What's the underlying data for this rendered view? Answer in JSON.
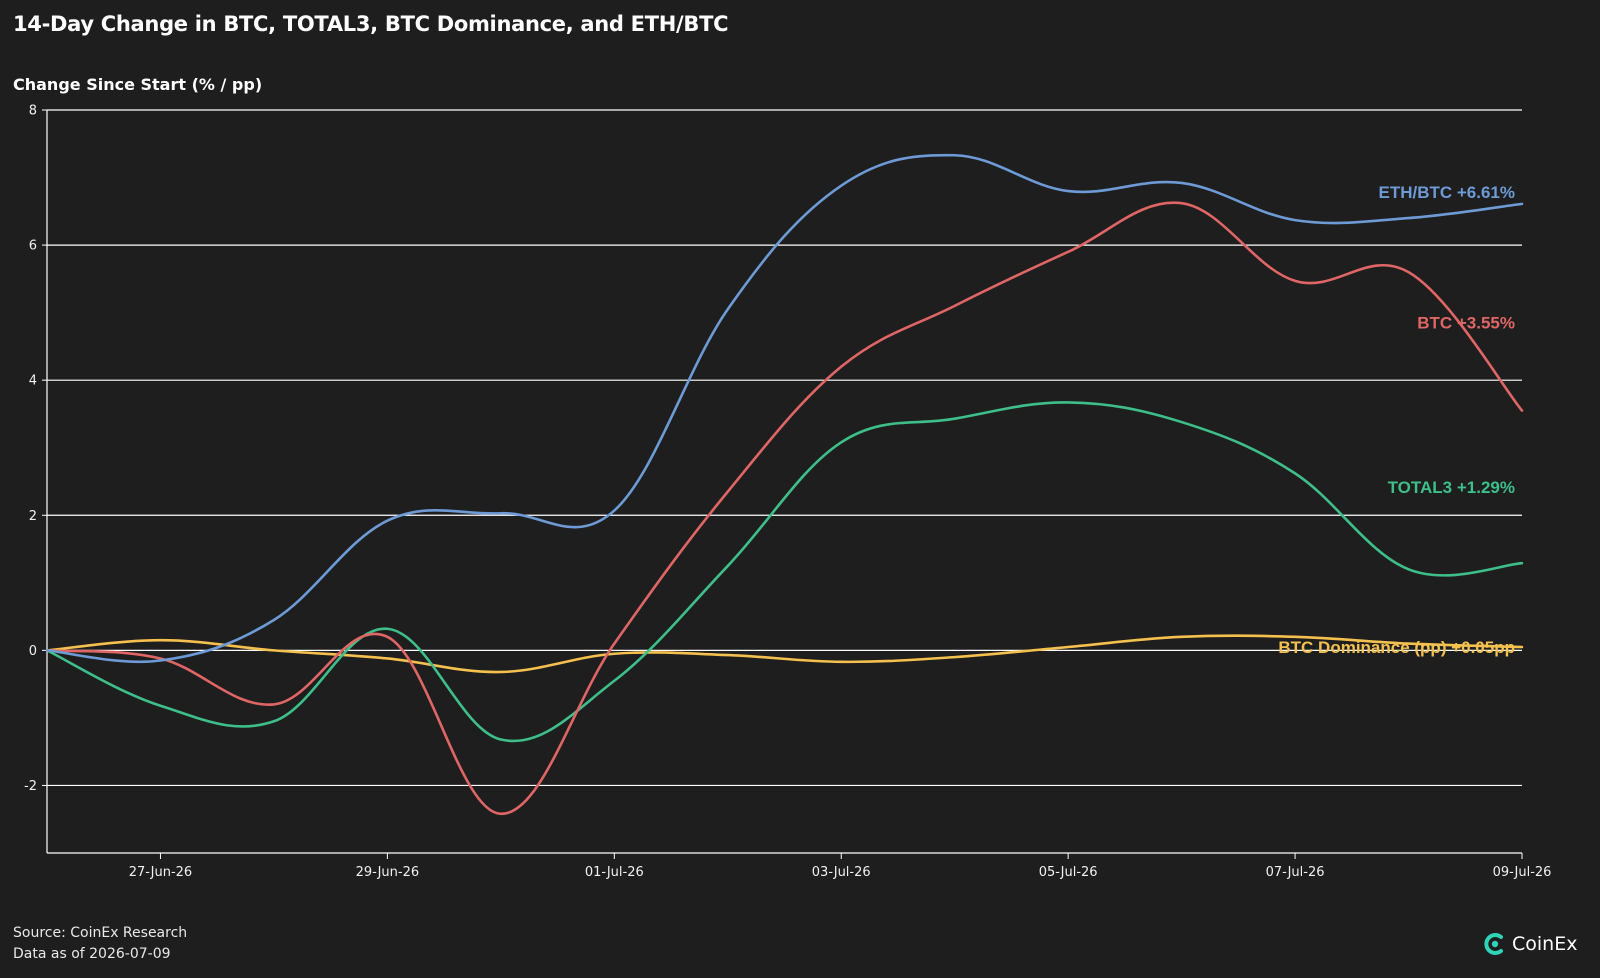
{
  "header": {
    "title": "14-Day Change in BTC, TOTAL3, BTC Dominance, and ETH/BTC",
    "ylabel": "Change Since Start (% / pp)"
  },
  "footer": {
    "source": "Source: CoinEx Research",
    "as_of": "Data as of 2026-07-09",
    "brand": "CoinEx"
  },
  "colors": {
    "background": "#1e1e1e",
    "grid": "#ffffff",
    "eth_btc": "#6d9bd6",
    "btc": "#e06666",
    "total3": "#3ebf8a",
    "btc_dominance": "#f4c04e",
    "brand_logo": "#2fd3b5"
  },
  "chart_data": {
    "type": "line",
    "title": "14-Day Change in BTC, TOTAL3, BTC Dominance, and ETH/BTC",
    "ylabel": "Change Since Start (% / pp)",
    "xlabel": "",
    "x": [
      "2026-06-26",
      "2026-06-27",
      "2026-06-28",
      "2026-06-29",
      "2026-06-30",
      "2026-07-01",
      "2026-07-02",
      "2026-07-03",
      "2026-07-04",
      "2026-07-05",
      "2026-07-06",
      "2026-07-07",
      "2026-07-08",
      "2026-07-09"
    ],
    "x_ticks": [
      "27-Jun-26",
      "29-Jun-26",
      "01-Jul-26",
      "03-Jul-26",
      "05-Jul-26",
      "07-Jul-26",
      "09-Jul-26"
    ],
    "x_tick_dates": [
      "2026-06-27",
      "2026-06-29",
      "2026-07-01",
      "2026-07-03",
      "2026-07-05",
      "2026-07-07",
      "2026-07-09"
    ],
    "ylim": [
      -3,
      8
    ],
    "y_ticks": [
      -2,
      0,
      2,
      4,
      6,
      8
    ],
    "grid": "horizontal",
    "series": [
      {
        "key": "eth_btc",
        "name": "ETH/BTC",
        "label": "ETH/BTC +6.61%",
        "values": [
          0,
          -0.15,
          0.45,
          1.92,
          2.03,
          2.07,
          5.05,
          6.88,
          7.33,
          6.8,
          6.92,
          6.37,
          6.4,
          6.61
        ]
      },
      {
        "key": "btc",
        "name": "BTC",
        "label": "BTC +3.55%",
        "values": [
          0,
          -0.12,
          -0.8,
          0.2,
          -2.42,
          0.1,
          2.35,
          4.2,
          5.1,
          5.9,
          6.62,
          5.47,
          5.6,
          3.55
        ]
      },
      {
        "key": "total3",
        "name": "TOTAL3",
        "label": "TOTAL3 +1.29%",
        "values": [
          0,
          -0.82,
          -1.05,
          0.32,
          -1.32,
          -0.45,
          1.25,
          3.08,
          3.43,
          3.67,
          3.38,
          2.62,
          1.2,
          1.29
        ]
      },
      {
        "key": "btc_dominance",
        "name": "BTC Dominance (pp)",
        "label": "BTC Dominance (pp) +0.05pp",
        "values": [
          0,
          0.15,
          0.0,
          -0.12,
          -0.32,
          -0.05,
          -0.07,
          -0.17,
          -0.1,
          0.05,
          0.2,
          0.2,
          0.1,
          0.05
        ]
      }
    ]
  }
}
